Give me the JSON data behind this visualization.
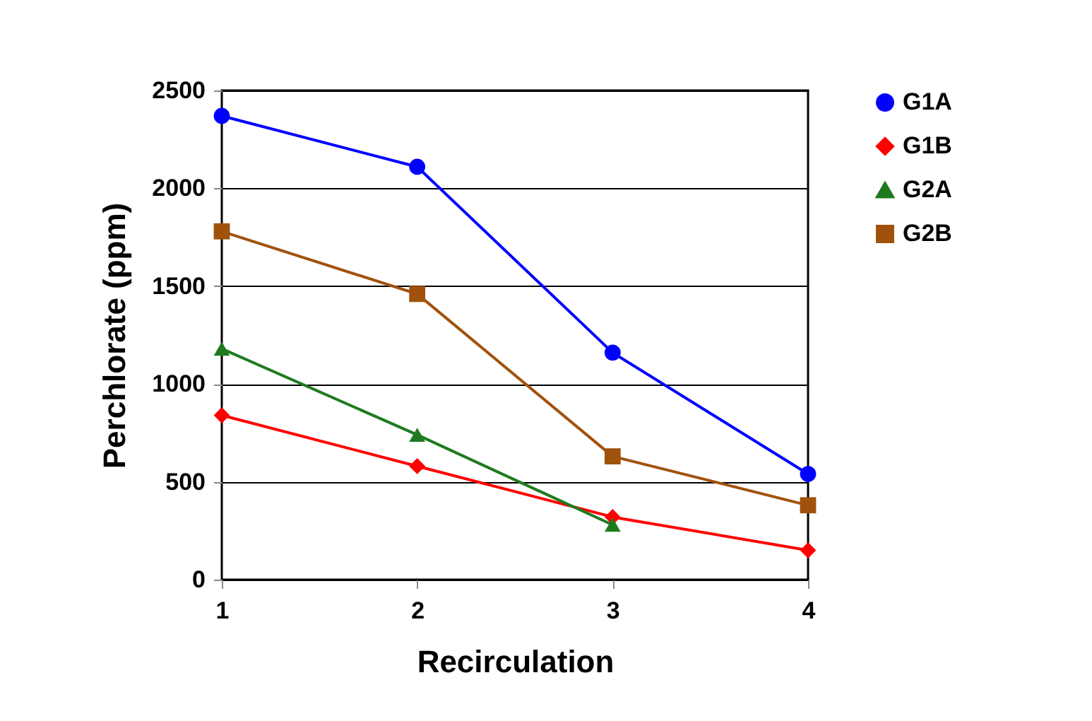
{
  "chart_data": {
    "type": "line",
    "xlabel": "Recirculation",
    "ylabel": "Perchlorate (ppm)",
    "x": [
      1,
      2,
      3,
      4
    ],
    "xlim": [
      1,
      4
    ],
    "xticks": [
      1,
      2,
      3,
      4
    ],
    "ylim": [
      0,
      2500
    ],
    "yticks": [
      0,
      500,
      1000,
      1500,
      2000,
      2500
    ],
    "grid": "y",
    "legend": "right",
    "line_style": "solid",
    "series": [
      {
        "name": "G1A",
        "color": "#0000ff",
        "marker": "circle",
        "values": [
          2370,
          2110,
          1160,
          540
        ]
      },
      {
        "name": "G1B",
        "color": "#ff0000",
        "marker": "diamond",
        "values": [
          840,
          580,
          320,
          150
        ]
      },
      {
        "name": "G2A",
        "color": "#1f7a1f",
        "marker": "triangle",
        "values": [
          1180,
          740,
          280,
          null
        ]
      },
      {
        "name": "G2B",
        "color": "#a0520d",
        "marker": "square",
        "values": [
          1780,
          1460,
          630,
          380
        ]
      }
    ]
  }
}
